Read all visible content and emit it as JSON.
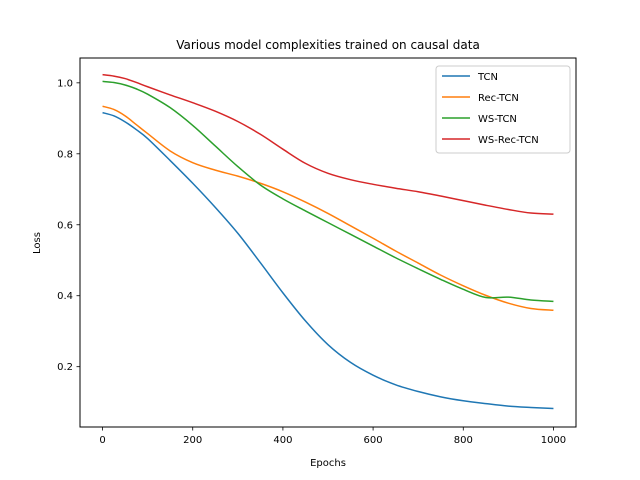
{
  "chart_data": {
    "type": "line",
    "title": "Various model complexities trained on causal data",
    "xlabel": "Epochs",
    "ylabel": "Loss",
    "xlim": [
      -50,
      1050
    ],
    "ylim": [
      0.03,
      1.07
    ],
    "x_ticks": [
      0,
      200,
      400,
      600,
      800,
      1000
    ],
    "y_ticks": [
      0.2,
      0.4,
      0.6,
      0.8,
      1.0
    ],
    "x_tick_labels": [
      "0",
      "200",
      "400",
      "600",
      "800",
      "1000"
    ],
    "y_tick_labels": [
      "0.2",
      "0.4",
      "0.6",
      "0.8",
      "1.0"
    ],
    "legend_position": "top-right",
    "grid": false,
    "x": [
      0,
      25,
      50,
      75,
      100,
      150,
      200,
      250,
      300,
      350,
      400,
      450,
      500,
      550,
      600,
      650,
      700,
      750,
      800,
      850,
      900,
      950,
      1000
    ],
    "series": [
      {
        "name": "TCN",
        "color": "#1f77b4",
        "values": [
          0.916,
          0.907,
          0.89,
          0.868,
          0.843,
          0.781,
          0.717,
          0.649,
          0.576,
          0.493,
          0.408,
          0.329,
          0.262,
          0.212,
          0.176,
          0.149,
          0.13,
          0.115,
          0.104,
          0.096,
          0.089,
          0.085,
          0.082
        ]
      },
      {
        "name": "Rec-TCN",
        "color": "#ff7f0e",
        "values": [
          0.934,
          0.925,
          0.907,
          0.882,
          0.857,
          0.808,
          0.775,
          0.754,
          0.737,
          0.717,
          0.693,
          0.664,
          0.632,
          0.597,
          0.562,
          0.526,
          0.492,
          0.458,
          0.428,
          0.401,
          0.379,
          0.364,
          0.359
        ]
      },
      {
        "name": "WS-TCN",
        "color": "#2ca02c",
        "values": [
          1.004,
          1.001,
          0.994,
          0.983,
          0.968,
          0.93,
          0.88,
          0.822,
          0.764,
          0.712,
          0.673,
          0.639,
          0.606,
          0.573,
          0.54,
          0.507,
          0.476,
          0.446,
          0.418,
          0.395,
          0.396,
          0.388,
          0.384
        ]
      },
      {
        "name": "WS-Rec-TCN",
        "color": "#d62728",
        "values": [
          1.023,
          1.019,
          1.012,
          1.001,
          0.989,
          0.966,
          0.944,
          0.92,
          0.891,
          0.855,
          0.813,
          0.773,
          0.745,
          0.727,
          0.714,
          0.703,
          0.693,
          0.681,
          0.668,
          0.655,
          0.643,
          0.633,
          0.63
        ]
      }
    ]
  }
}
